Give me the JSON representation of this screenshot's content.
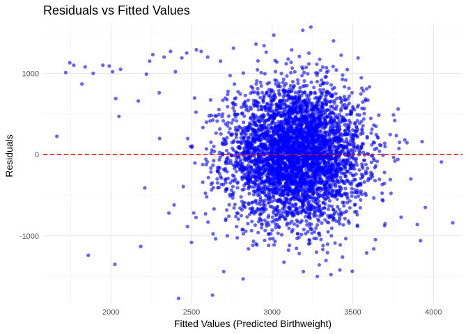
{
  "chart_data": {
    "type": "scatter",
    "title": "Residuals vs Fitted Values",
    "xlabel": "Fitted Values (Predicted Birthweight)",
    "ylabel": "Residuals",
    "xlim": [
      1580,
      4180
    ],
    "ylim": [
      -1840,
      1620
    ],
    "x_ticks": [
      2000,
      2500,
      3000,
      3500,
      4000
    ],
    "y_ticks": [
      -1000,
      0,
      1000
    ],
    "x_tick_labels": [
      "2000",
      "2500",
      "3000",
      "3500",
      "4000"
    ],
    "y_tick_labels": [
      "-1000",
      "0",
      "1000"
    ],
    "grid": true,
    "reference_line": {
      "y": 0,
      "style": "dashed",
      "color": "#ff0000"
    },
    "point_color": "#0000ff",
    "point_opacity": 0.6,
    "distribution": {
      "n_points": 4342,
      "center_x": 3150,
      "sd_x": 210,
      "center_y": 0,
      "sd_y": 420
    },
    "points": [
      {
        "x": 1665,
        "y": 225
      },
      {
        "x": 1720,
        "y": 1010
      },
      {
        "x": 1745,
        "y": 1130
      },
      {
        "x": 1770,
        "y": 1100
      },
      {
        "x": 1820,
        "y": 870
      },
      {
        "x": 1840,
        "y": 1080
      },
      {
        "x": 1860,
        "y": -1240
      },
      {
        "x": 1890,
        "y": 1000
      },
      {
        "x": 1950,
        "y": 1100
      },
      {
        "x": 1990,
        "y": 1090
      },
      {
        "x": 2010,
        "y": 1020
      },
      {
        "x": 2025,
        "y": -1350
      },
      {
        "x": 2030,
        "y": 690
      },
      {
        "x": 2050,
        "y": 470
      },
      {
        "x": 2060,
        "y": 1050
      },
      {
        "x": 2170,
        "y": 660
      },
      {
        "x": 2185,
        "y": -1130
      },
      {
        "x": 2210,
        "y": -410
      },
      {
        "x": 2220,
        "y": 990
      },
      {
        "x": 2240,
        "y": 1150
      },
      {
        "x": 2260,
        "y": 1230
      },
      {
        "x": 2300,
        "y": 760
      },
      {
        "x": 2330,
        "y": 1200
      },
      {
        "x": 2360,
        "y": -720
      },
      {
        "x": 2370,
        "y": 1270
      },
      {
        "x": 2400,
        "y": 1020
      },
      {
        "x": 2420,
        "y": -1770
      },
      {
        "x": 2440,
        "y": 1190
      },
      {
        "x": 2470,
        "y": 1250
      },
      {
        "x": 2500,
        "y": -1080
      },
      {
        "x": 2530,
        "y": 1290
      },
      {
        "x": 2560,
        "y": 1270
      },
      {
        "x": 2600,
        "y": 1200
      },
      {
        "x": 2630,
        "y": -1730
      },
      {
        "x": 2680,
        "y": 1150
      },
      {
        "x": 2700,
        "y": -1440
      },
      {
        "x": 2760,
        "y": 1310
      },
      {
        "x": 2820,
        "y": -1530
      },
      {
        "x": 2900,
        "y": 1360
      },
      {
        "x": 2950,
        "y": 1340
      },
      {
        "x": 3010,
        "y": 1470
      },
      {
        "x": 3240,
        "y": 1570
      },
      {
        "x": 3190,
        "y": 1530
      },
      {
        "x": 3280,
        "y": -1500
      },
      {
        "x": 3380,
        "y": 1400
      },
      {
        "x": 3420,
        "y": -1420
      },
      {
        "x": 3630,
        "y": -1160
      },
      {
        "x": 3700,
        "y": -850
      },
      {
        "x": 3760,
        "y": 420
      },
      {
        "x": 3800,
        "y": -770
      },
      {
        "x": 3860,
        "y": -300
      },
      {
        "x": 3900,
        "y": -860
      },
      {
        "x": 3920,
        "y": -1060
      },
      {
        "x": 3950,
        "y": -650
      },
      {
        "x": 3930,
        "y": 160
      },
      {
        "x": 4050,
        "y": -90
      },
      {
        "x": 4120,
        "y": -840
      }
    ]
  }
}
